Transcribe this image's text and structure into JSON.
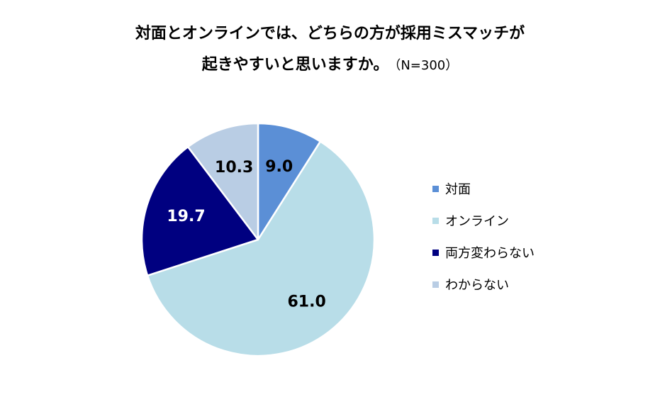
{
  "chart_data": {
    "type": "pie",
    "title_lines": [
      "対面とオンラインでは、どちらの方が採用ミスマッチが",
      "起きやすいと思いますか。"
    ],
    "subtitle": "（N=300）",
    "unit": "%",
    "slices": [
      {
        "label": "対面",
        "value": 9.0,
        "display": "9.0",
        "color": "#5b8fd6",
        "label_color": "#000000"
      },
      {
        "label": "オンライン",
        "value": 61.0,
        "display": "61.0",
        "color": "#b8dde8",
        "label_color": "#000000"
      },
      {
        "label": "両方変わらない",
        "value": 19.7,
        "display": "19.7",
        "color": "#000080",
        "label_color": "#ffffff"
      },
      {
        "label": "わからない",
        "value": 10.3,
        "display": "10.3",
        "color": "#b9cde4",
        "label_color": "#000000"
      }
    ],
    "start": "12 o'clock",
    "direction": "clockwise",
    "legend_position": "right"
  }
}
